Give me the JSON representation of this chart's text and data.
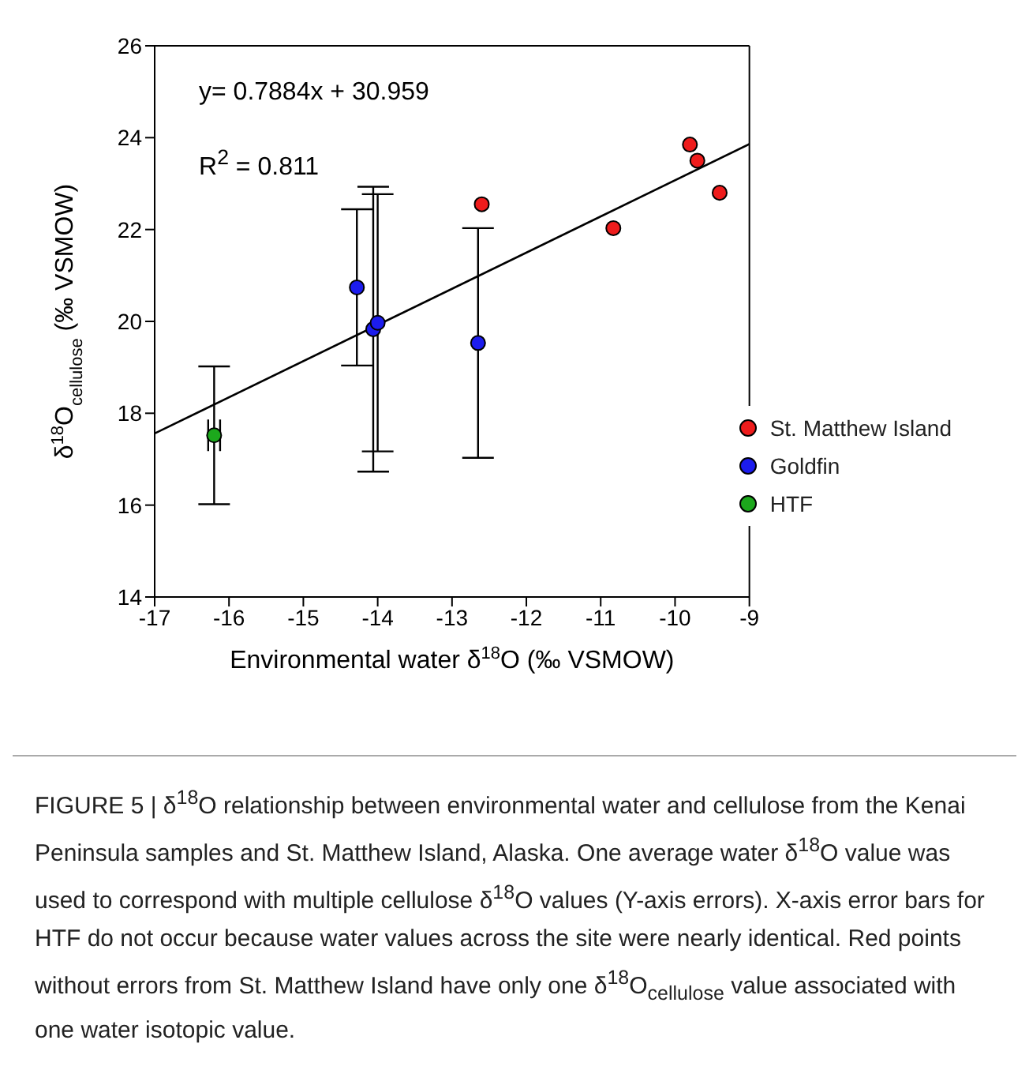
{
  "chart_data": {
    "type": "scatter",
    "xlabel": "Environmental water δ$^{18}$O (‰ VSMOW)",
    "ylabel": "δ$^{18}$O$_{cellulose}$ (‰ VSMOW)",
    "xlim": [
      -17,
      -9
    ],
    "xticks": [
      -17,
      -16,
      -15,
      -14,
      -13,
      -12,
      -11,
      -10,
      -9
    ],
    "ylim": [
      14,
      26
    ],
    "yticks": [
      14,
      16,
      18,
      20,
      22,
      24,
      26
    ],
    "grid": false,
    "legend": "bottom right",
    "marker": "circle",
    "series": [
      {
        "name": "St. Matthew Island",
        "color": "#ee1c1c",
        "x": [
          -12.6,
          -10.83,
          -9.8,
          -9.7,
          -9.4
        ],
        "values": [
          22.55,
          22.03,
          23.85,
          23.5,
          22.8
        ]
      },
      {
        "name": "Goldfin",
        "color": "#1c1cee",
        "x": [
          -14.28,
          -14.06,
          -14.0,
          -12.65
        ],
        "values": [
          20.74,
          19.83,
          19.97,
          19.53
        ],
        "errors": [
          1.7,
          3.1,
          2.8,
          2.5
        ]
      },
      {
        "name": "HTF",
        "color": "#1ca81c",
        "x": [
          -16.2
        ],
        "values": [
          17.52
        ],
        "errors": [
          1.5
        ],
        "xerrors": [
          0.08
        ]
      },
      {
        "type": "line",
        "color": "#000000",
        "x": [
          -17,
          -9
        ],
        "values": [
          17.56,
          23.86
        ],
        "line_style": "solid",
        "marker": "none"
      }
    ],
    "annotations": [
      "y= 0.7884x + 30.959",
      "R$^{2}$ = 0.811",
      "FIGURE 5 | δ$^{18}$O relationship between environmental water and cellulose from the Kenai Peninsula samples and St. Matthew Island, Alaska. One average water δ$^{18}$O value was used to correspond with multiple cellulose δ$^{18}$O values (Y-axis errors). X-axis error bars for HTF do not occur because water values across the site were nearly identical. Red points without errors from St. Matthew Island have only one δ$^{18}$O$_{cellulose}$ value associated with one water isotopic value."
    ]
  }
}
